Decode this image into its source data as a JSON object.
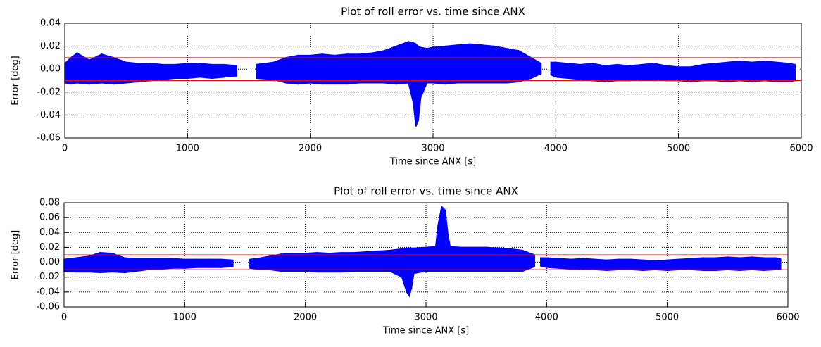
{
  "chart_data": [
    {
      "type": "band",
      "title": "Plot of roll error vs. time since ANX",
      "x_label": "Time since ANX [s]",
      "y_label": "Error [deg]",
      "x": [
        0,
        50,
        100,
        200,
        300,
        400,
        500,
        600,
        700,
        800,
        900,
        1000,
        1100,
        1200,
        1300,
        1400,
        1480,
        1560,
        1700,
        1800,
        1900,
        2000,
        2100,
        2200,
        2300,
        2400,
        2500,
        2600,
        2700,
        2800,
        2840,
        2860,
        2880,
        2900,
        2950,
        3000,
        3100,
        3200,
        3300,
        3400,
        3500,
        3600,
        3700,
        3800,
        3880,
        3920,
        3960,
        4000,
        4100,
        4200,
        4300,
        4400,
        4500,
        4600,
        4700,
        4800,
        4900,
        5000,
        5100,
        5200,
        5300,
        5400,
        5500,
        5600,
        5700,
        5800,
        5900,
        5950
      ],
      "low": [
        -0.012,
        -0.013,
        -0.012,
        -0.013,
        -0.012,
        -0.013,
        -0.012,
        -0.011,
        -0.01,
        -0.009,
        -0.008,
        -0.008,
        -0.007,
        -0.008,
        -0.007,
        -0.006,
        null,
        -0.008,
        -0.009,
        -0.012,
        -0.013,
        -0.012,
        -0.013,
        -0.013,
        -0.013,
        -0.012,
        -0.012,
        -0.012,
        -0.013,
        -0.012,
        -0.03,
        -0.05,
        -0.045,
        -0.025,
        -0.012,
        -0.012,
        -0.013,
        -0.012,
        -0.012,
        -0.012,
        -0.012,
        -0.012,
        -0.011,
        -0.008,
        -0.004,
        null,
        -0.005,
        -0.007,
        -0.008,
        -0.009,
        -0.01,
        -0.011,
        -0.01,
        -0.01,
        -0.009,
        -0.009,
        -0.01,
        -0.01,
        -0.011,
        -0.01,
        -0.01,
        -0.011,
        -0.01,
        -0.011,
        -0.01,
        -0.011,
        -0.011,
        -0.01
      ],
      "high": [
        0.005,
        0.01,
        0.014,
        0.008,
        0.013,
        0.01,
        0.006,
        0.005,
        0.005,
        0.004,
        0.004,
        0.005,
        0.005,
        0.004,
        0.004,
        0.003,
        null,
        0.004,
        0.006,
        0.01,
        0.012,
        0.012,
        0.013,
        0.012,
        0.013,
        0.013,
        0.014,
        0.016,
        0.02,
        0.024,
        0.023,
        0.022,
        0.02,
        0.019,
        0.018,
        0.019,
        0.02,
        0.021,
        0.022,
        0.021,
        0.02,
        0.018,
        0.016,
        0.01,
        0.005,
        null,
        0.006,
        0.006,
        0.005,
        0.004,
        0.005,
        0.003,
        0.004,
        0.003,
        0.004,
        0.005,
        0.003,
        0.002,
        0.002,
        0.004,
        0.005,
        0.006,
        0.007,
        0.006,
        0.007,
        0.006,
        0.005,
        0.004
      ],
      "color": "#0000ff",
      "hlines": [
        0.01,
        -0.01
      ],
      "hline_color": "#ff0000",
      "xlim": [
        0,
        6000
      ],
      "xticks": [
        0,
        1000,
        2000,
        3000,
        4000,
        5000,
        6000
      ],
      "ylim": [
        -0.06,
        0.04
      ],
      "yticks": [
        -0.06,
        -0.04,
        -0.02,
        {
          "value": 0,
          "label": "0.00"
        },
        0.02,
        0.04
      ],
      "grid": true
    },
    {
      "type": "band",
      "title": "Plot of roll error vs. time since ANX",
      "x_label": "Time since ANX [s]",
      "y_label": "Error [deg]",
      "x": [
        0,
        100,
        200,
        300,
        400,
        500,
        600,
        700,
        800,
        900,
        1000,
        1100,
        1200,
        1300,
        1400,
        1470,
        1540,
        1600,
        1700,
        1800,
        1900,
        2000,
        2100,
        2200,
        2300,
        2400,
        2500,
        2600,
        2700,
        2800,
        2840,
        2860,
        2880,
        2900,
        3000,
        3080,
        3100,
        3130,
        3160,
        3180,
        3200,
        3300,
        3400,
        3500,
        3600,
        3700,
        3800,
        3900,
        3930,
        3950,
        4000,
        4100,
        4200,
        4300,
        4400,
        4500,
        4600,
        4700,
        4800,
        4900,
        5000,
        5100,
        5200,
        5300,
        5400,
        5500,
        5600,
        5700,
        5800,
        5900,
        5940
      ],
      "low": [
        -0.012,
        -0.013,
        -0.013,
        -0.014,
        -0.013,
        -0.014,
        -0.012,
        -0.01,
        -0.009,
        -0.008,
        -0.008,
        -0.007,
        -0.007,
        -0.007,
        -0.006,
        null,
        -0.008,
        -0.009,
        -0.01,
        -0.012,
        -0.012,
        -0.012,
        -0.013,
        -0.013,
        -0.013,
        -0.012,
        -0.012,
        -0.012,
        -0.012,
        -0.02,
        -0.04,
        -0.045,
        -0.035,
        -0.015,
        -0.012,
        -0.012,
        -0.012,
        -0.012,
        -0.012,
        -0.012,
        -0.012,
        -0.012,
        -0.012,
        -0.012,
        -0.012,
        -0.012,
        -0.012,
        -0.006,
        null,
        -0.005,
        -0.007,
        -0.008,
        -0.009,
        -0.01,
        -0.01,
        -0.011,
        -0.01,
        -0.01,
        -0.011,
        -0.01,
        -0.011,
        -0.01,
        -0.01,
        -0.011,
        -0.011,
        -0.01,
        -0.011,
        -0.01,
        -0.011,
        -0.01,
        -0.009
      ],
      "high": [
        0.004,
        0.006,
        0.008,
        0.013,
        0.012,
        0.006,
        0.005,
        0.005,
        0.005,
        0.005,
        0.004,
        0.004,
        0.004,
        0.004,
        0.003,
        null,
        0.004,
        0.005,
        0.008,
        0.011,
        0.012,
        0.012,
        0.013,
        0.012,
        0.013,
        0.013,
        0.014,
        0.015,
        0.016,
        0.018,
        0.019,
        0.019,
        0.019,
        0.019,
        0.02,
        0.021,
        0.05,
        0.075,
        0.07,
        0.04,
        0.021,
        0.02,
        0.02,
        0.02,
        0.019,
        0.018,
        0.016,
        0.01,
        null,
        0.006,
        0.006,
        0.005,
        0.004,
        0.005,
        0.004,
        0.003,
        0.004,
        0.004,
        0.003,
        0.002,
        0.003,
        0.004,
        0.005,
        0.006,
        0.006,
        0.007,
        0.006,
        0.007,
        0.006,
        0.006,
        0.005
      ],
      "color": "#0000ff",
      "hlines": [
        0.01,
        -0.01
      ],
      "hline_color": "#ff0000",
      "xlim": [
        0,
        6000
      ],
      "xticks": [
        0,
        1000,
        2000,
        3000,
        4000,
        5000,
        6000
      ],
      "ylim": [
        -0.06,
        0.08
      ],
      "yticks": [
        -0.06,
        -0.04,
        -0.02,
        {
          "value": 0,
          "label": "0.00"
        },
        0.02,
        0.04,
        0.06,
        0.08
      ],
      "grid": true
    }
  ]
}
